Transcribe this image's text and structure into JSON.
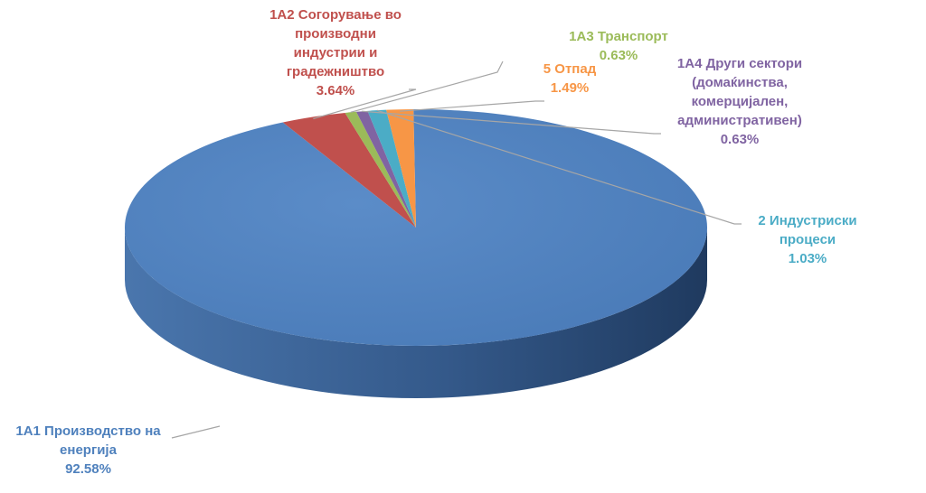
{
  "chart_data": {
    "type": "pie",
    "title": "",
    "slices": [
      {
        "label": "1A1 Производство на енергија",
        "name_lines": [
          "1A1 Производство на",
          "енергија"
        ],
        "value": 92.58,
        "pct_label": "92.58%",
        "color": "#4f81bd",
        "dark": "#2c4f7c"
      },
      {
        "label": "1A2 Согорување во производни индустрии и градежништво",
        "name_lines": [
          "1A2 Согорување во",
          "производни",
          "индустрии и",
          "градежништво"
        ],
        "value": 3.64,
        "pct_label": "3.64%",
        "color": "#c0504d",
        "dark": "#7e2f2d"
      },
      {
        "label": "1A3 Транспорт",
        "name_lines": [
          "1A3 Транспорт"
        ],
        "value": 0.63,
        "pct_label": "0.63%",
        "color": "#9bbb59",
        "dark": "#5f7a30"
      },
      {
        "label": "1A4 Други сектори (домаќинства, комерцијален, административен)",
        "name_lines": [
          "1A4 Други сектори",
          "(домаќинства,",
          "комерцијален,",
          "административен)"
        ],
        "value": 0.63,
        "pct_label": "0.63%",
        "color": "#8064a2",
        "dark": "#4e3a66"
      },
      {
        "label": "2 Индустриски процеси",
        "name_lines": [
          "2 Индустриски",
          "процеси"
        ],
        "value": 1.03,
        "pct_label": "1.03%",
        "color": "#4bacc6",
        "dark": "#2a7186"
      },
      {
        "label": "5 Отпад",
        "name_lines": [
          "5 Отпад"
        ],
        "value": 1.49,
        "pct_label": "1.49%",
        "color": "#f79646",
        "dark": "#b0601f"
      }
    ]
  }
}
